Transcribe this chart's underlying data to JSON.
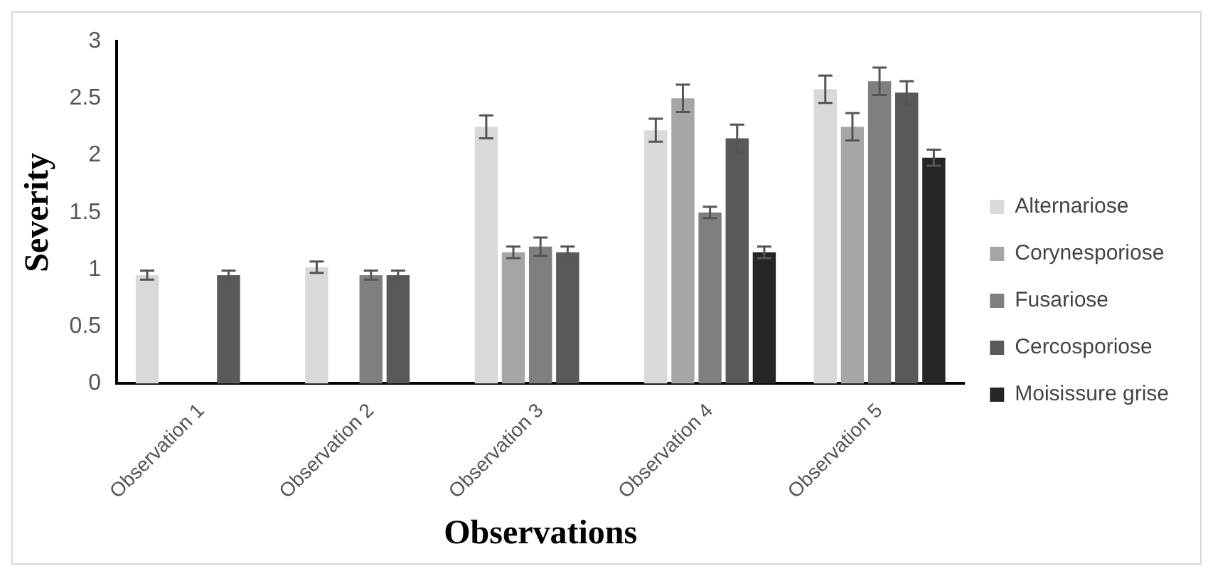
{
  "chart_data": {
    "type": "bar",
    "xlabel": "Observations",
    "ylabel": "Severity",
    "categories": [
      "Observation 1",
      "Observation 2",
      "Observation 3",
      "Observation 4",
      "Observation 5"
    ],
    "series": [
      {
        "name": "Alternariose",
        "color": "#d9d9d9",
        "values": [
          0.95,
          1.02,
          2.25,
          2.22,
          2.58
        ],
        "errors": [
          0.04,
          0.05,
          0.1,
          0.1,
          0.12
        ]
      },
      {
        "name": "Corynesporiose",
        "color": "#a6a6a6",
        "values": [
          0,
          0,
          1.15,
          2.5,
          2.25
        ],
        "errors": [
          null,
          null,
          0.05,
          0.12,
          0.12
        ]
      },
      {
        "name": "Fusariose",
        "color": "#7f7f7f",
        "values": [
          0,
          0.95,
          1.2,
          1.5,
          2.65
        ],
        "errors": [
          null,
          0.04,
          0.08,
          0.05,
          0.12
        ]
      },
      {
        "name": "Cercosporiose",
        "color": "#595959",
        "values": [
          0.95,
          0.95,
          1.15,
          2.15,
          2.55
        ],
        "errors": [
          0.04,
          0.04,
          0.05,
          0.12,
          0.1
        ]
      },
      {
        "name": "Moisissure grise",
        "color": "#262626",
        "values": [
          0,
          0,
          0,
          1.15,
          1.98
        ],
        "errors": [
          null,
          null,
          null,
          0.05,
          0.07
        ]
      }
    ],
    "ylim": [
      0,
      3
    ],
    "yticks": [
      0,
      0.5,
      1,
      1.5,
      2,
      2.5,
      3
    ],
    "grid": false,
    "legend": "right"
  }
}
